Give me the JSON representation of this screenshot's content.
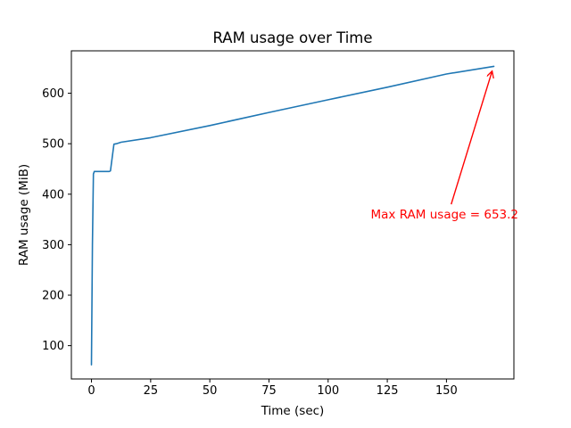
{
  "chart_data": {
    "type": "line",
    "title": "RAM usage over Time",
    "xlabel": "Time (sec)",
    "ylabel": "RAM usage (MiB)",
    "x_ticks": [
      0,
      25,
      50,
      75,
      100,
      125,
      150
    ],
    "y_ticks": [
      100,
      200,
      300,
      400,
      500,
      600
    ],
    "xlim": [
      -8.5,
      178.5
    ],
    "ylim": [
      34,
      684
    ],
    "grid": false,
    "legend": null,
    "background_color": "#ffffff",
    "spine_color": "#000000",
    "series": [
      {
        "name": "RAM usage",
        "color": "#1f77b4",
        "points": [
          [
            0,
            62
          ],
          [
            0.4,
            300
          ],
          [
            0.8,
            440
          ],
          [
            1.2,
            445
          ],
          [
            7.5,
            445
          ],
          [
            8.0,
            446
          ],
          [
            9.5,
            499
          ],
          [
            10.5,
            500
          ],
          [
            12.5,
            503
          ],
          [
            25,
            512
          ],
          [
            50,
            536
          ],
          [
            75,
            562
          ],
          [
            100,
            587
          ],
          [
            125,
            612
          ],
          [
            150,
            638
          ],
          [
            170,
            653.2
          ]
        ]
      }
    ],
    "annotation": {
      "text": "Max RAM usage = 653.2",
      "color": "#ff0000",
      "xy": [
        170,
        653.2
      ],
      "text_pos": [
        118,
        373
      ],
      "arrow_start": [
        152,
        380
      ],
      "arrow_end": [
        169.3,
        644
      ]
    }
  }
}
